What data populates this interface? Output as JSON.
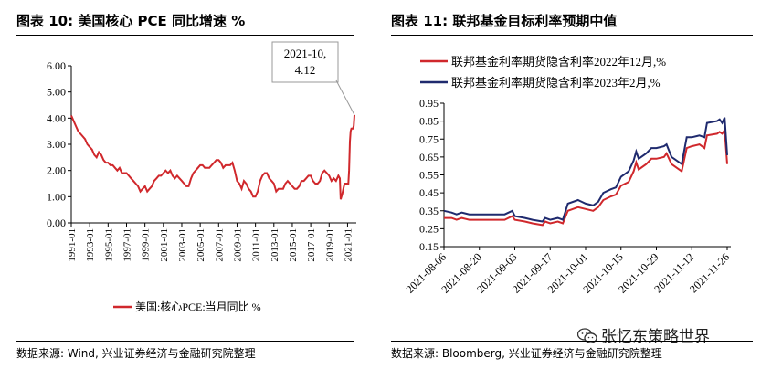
{
  "left_panel": {
    "title": "图表 10:  美国核心 PCE 同比增速 %",
    "source": "数据来源:  Wind, 兴业证券经济与金融研究院整理"
  },
  "right_panel": {
    "title": "图表 11:  联邦基金目标利率预期中值",
    "source": "数据来源:  Bloomberg, 兴业证券经济与金融研究院整理"
  },
  "watermark": {
    "text": "张忆东策略世界",
    "icon": "wechat-icon"
  },
  "chart_data": [
    {
      "type": "line",
      "title": "",
      "xlabel": "",
      "ylabel": "",
      "ylim": [
        0,
        6
      ],
      "y_ticks": [
        "0.00",
        "1.00",
        "2.00",
        "3.00",
        "4.00",
        "5.00",
        "6.00"
      ],
      "x_ticks": [
        "1991-01",
        "1993-01",
        "1995-01",
        "1997-01",
        "1999-01",
        "2001-01",
        "2003-01",
        "2005-01",
        "2007-01",
        "2009-01",
        "2011-01",
        "2013-01",
        "2015-01",
        "2017-01",
        "2019-01",
        "2021-01"
      ],
      "x_range": [
        "1991-01",
        "2021-10"
      ],
      "grid": false,
      "legend_position": "bottom",
      "annotation": {
        "lines": [
          "2021-10,",
          "4.12"
        ],
        "x": "2021-10",
        "y": 4.12
      },
      "series": [
        {
          "name": "美国:核心PCE:当月同比 %",
          "color": "#d0282c",
          "points": [
            [
              "1991-01",
              4.1
            ],
            [
              "1991-04",
              3.9
            ],
            [
              "1991-07",
              3.7
            ],
            [
              "1991-10",
              3.5
            ],
            [
              "1992-01",
              3.4
            ],
            [
              "1992-04",
              3.3
            ],
            [
              "1992-07",
              3.2
            ],
            [
              "1992-10",
              3.0
            ],
            [
              "1993-01",
              2.9
            ],
            [
              "1993-04",
              2.8
            ],
            [
              "1993-07",
              2.6
            ],
            [
              "1993-10",
              2.5
            ],
            [
              "1994-01",
              2.7
            ],
            [
              "1994-04",
              2.6
            ],
            [
              "1994-07",
              2.4
            ],
            [
              "1994-10",
              2.3
            ],
            [
              "1995-01",
              2.3
            ],
            [
              "1995-04",
              2.2
            ],
            [
              "1995-07",
              2.2
            ],
            [
              "1995-10",
              2.1
            ],
            [
              "1996-01",
              2.0
            ],
            [
              "1996-04",
              2.1
            ],
            [
              "1996-07",
              1.9
            ],
            [
              "1996-10",
              1.9
            ],
            [
              "1997-01",
              1.9
            ],
            [
              "1997-04",
              1.8
            ],
            [
              "1997-07",
              1.7
            ],
            [
              "1997-10",
              1.6
            ],
            [
              "1998-01",
              1.5
            ],
            [
              "1998-04",
              1.4
            ],
            [
              "1998-07",
              1.2
            ],
            [
              "1998-10",
              1.3
            ],
            [
              "1999-01",
              1.4
            ],
            [
              "1999-04",
              1.2
            ],
            [
              "1999-07",
              1.3
            ],
            [
              "1999-10",
              1.4
            ],
            [
              "2000-01",
              1.6
            ],
            [
              "2000-04",
              1.7
            ],
            [
              "2000-07",
              1.8
            ],
            [
              "2000-10",
              1.8
            ],
            [
              "2001-01",
              1.9
            ],
            [
              "2001-04",
              2.0
            ],
            [
              "2001-07",
              1.9
            ],
            [
              "2001-10",
              2.0
            ],
            [
              "2002-01",
              1.8
            ],
            [
              "2002-04",
              1.7
            ],
            [
              "2002-07",
              1.8
            ],
            [
              "2002-10",
              1.7
            ],
            [
              "2003-01",
              1.6
            ],
            [
              "2003-04",
              1.5
            ],
            [
              "2003-07",
              1.4
            ],
            [
              "2003-10",
              1.4
            ],
            [
              "2004-01",
              1.7
            ],
            [
              "2004-04",
              1.9
            ],
            [
              "2004-07",
              2.0
            ],
            [
              "2004-10",
              2.1
            ],
            [
              "2005-01",
              2.2
            ],
            [
              "2005-04",
              2.2
            ],
            [
              "2005-07",
              2.1
            ],
            [
              "2005-10",
              2.1
            ],
            [
              "2006-01",
              2.1
            ],
            [
              "2006-04",
              2.2
            ],
            [
              "2006-07",
              2.3
            ],
            [
              "2006-10",
              2.4
            ],
            [
              "2007-01",
              2.4
            ],
            [
              "2007-04",
              2.3
            ],
            [
              "2007-07",
              2.1
            ],
            [
              "2007-10",
              2.2
            ],
            [
              "2008-01",
              2.2
            ],
            [
              "2008-04",
              2.2
            ],
            [
              "2008-07",
              2.3
            ],
            [
              "2008-10",
              2.0
            ],
            [
              "2009-01",
              1.6
            ],
            [
              "2009-04",
              1.5
            ],
            [
              "2009-07",
              1.3
            ],
            [
              "2009-10",
              1.6
            ],
            [
              "2010-01",
              1.5
            ],
            [
              "2010-04",
              1.3
            ],
            [
              "2010-07",
              1.2
            ],
            [
              "2010-10",
              1.0
            ],
            [
              "2011-01",
              1.0
            ],
            [
              "2011-04",
              1.2
            ],
            [
              "2011-07",
              1.6
            ],
            [
              "2011-10",
              1.8
            ],
            [
              "2012-01",
              1.9
            ],
            [
              "2012-04",
              1.9
            ],
            [
              "2012-07",
              1.7
            ],
            [
              "2012-10",
              1.6
            ],
            [
              "2013-01",
              1.5
            ],
            [
              "2013-04",
              1.2
            ],
            [
              "2013-07",
              1.3
            ],
            [
              "2013-10",
              1.3
            ],
            [
              "2014-01",
              1.3
            ],
            [
              "2014-04",
              1.5
            ],
            [
              "2014-07",
              1.6
            ],
            [
              "2014-10",
              1.5
            ],
            [
              "2015-01",
              1.4
            ],
            [
              "2015-04",
              1.3
            ],
            [
              "2015-07",
              1.3
            ],
            [
              "2015-10",
              1.4
            ],
            [
              "2016-01",
              1.6
            ],
            [
              "2016-04",
              1.6
            ],
            [
              "2016-07",
              1.7
            ],
            [
              "2016-10",
              1.8
            ],
            [
              "2017-01",
              1.8
            ],
            [
              "2017-04",
              1.6
            ],
            [
              "2017-07",
              1.5
            ],
            [
              "2017-10",
              1.5
            ],
            [
              "2018-01",
              1.6
            ],
            [
              "2018-04",
              1.9
            ],
            [
              "2018-07",
              2.0
            ],
            [
              "2018-10",
              1.9
            ],
            [
              "2019-01",
              1.8
            ],
            [
              "2019-04",
              1.6
            ],
            [
              "2019-07",
              1.7
            ],
            [
              "2019-10",
              1.6
            ],
            [
              "2020-01",
              1.8
            ],
            [
              "2020-03",
              1.7
            ],
            [
              "2020-04",
              0.9
            ],
            [
              "2020-06",
              1.1
            ],
            [
              "2020-09",
              1.5
            ],
            [
              "2020-12",
              1.5
            ],
            [
              "2021-02",
              1.5
            ],
            [
              "2021-03",
              2.0
            ],
            [
              "2021-04",
              3.1
            ],
            [
              "2021-05",
              3.5
            ],
            [
              "2021-06",
              3.6
            ],
            [
              "2021-07",
              3.6
            ],
            [
              "2021-08",
              3.6
            ],
            [
              "2021-09",
              3.7
            ],
            [
              "2021-10",
              4.12
            ]
          ]
        }
      ]
    },
    {
      "type": "line",
      "title": "",
      "xlabel": "",
      "ylabel": "",
      "ylim": [
        0.15,
        0.95
      ],
      "y_ticks": [
        "0.15",
        "0.25",
        "0.35",
        "0.45",
        "0.55",
        "0.65",
        "0.75",
        "0.85",
        "0.95"
      ],
      "x_ticks": [
        "2021-08-06",
        "2021-08-20",
        "2021-09-03",
        "2021-09-17",
        "2021-10-01",
        "2021-10-15",
        "2021-10-29",
        "2021-11-12",
        "2021-11-26"
      ],
      "x_range": [
        "2021-08-06",
        "2021-11-26"
      ],
      "grid": false,
      "legend_position": "top-left",
      "series": [
        {
          "name": "联邦基金利率期货隐含利率2022年12月,%",
          "color": "#d0282c",
          "points": [
            [
              "2021-08-06",
              0.31
            ],
            [
              "2021-08-09",
              0.31
            ],
            [
              "2021-08-11",
              0.3
            ],
            [
              "2021-08-13",
              0.31
            ],
            [
              "2021-08-16",
              0.3
            ],
            [
              "2021-08-20",
              0.3
            ],
            [
              "2021-08-25",
              0.3
            ],
            [
              "2021-08-30",
              0.3
            ],
            [
              "2021-09-02",
              0.32
            ],
            [
              "2021-09-03",
              0.3
            ],
            [
              "2021-09-07",
              0.29
            ],
            [
              "2021-09-10",
              0.28
            ],
            [
              "2021-09-14",
              0.27
            ],
            [
              "2021-09-15",
              0.29
            ],
            [
              "2021-09-17",
              0.28
            ],
            [
              "2021-09-20",
              0.29
            ],
            [
              "2021-09-22",
              0.28
            ],
            [
              "2021-09-24",
              0.35
            ],
            [
              "2021-09-28",
              0.37
            ],
            [
              "2021-10-01",
              0.36
            ],
            [
              "2021-10-04",
              0.35
            ],
            [
              "2021-10-06",
              0.37
            ],
            [
              "2021-10-08",
              0.41
            ],
            [
              "2021-10-11",
              0.43
            ],
            [
              "2021-10-13",
              0.44
            ],
            [
              "2021-10-15",
              0.49
            ],
            [
              "2021-10-18",
              0.51
            ],
            [
              "2021-10-20",
              0.57
            ],
            [
              "2021-10-21",
              0.62
            ],
            [
              "2021-10-22",
              0.58
            ],
            [
              "2021-10-25",
              0.61
            ],
            [
              "2021-10-27",
              0.64
            ],
            [
              "2021-10-29",
              0.64
            ],
            [
              "2021-11-01",
              0.65
            ],
            [
              "2021-11-02",
              0.67
            ],
            [
              "2021-11-04",
              0.61
            ],
            [
              "2021-11-05",
              0.6
            ],
            [
              "2021-11-08",
              0.57
            ],
            [
              "2021-11-10",
              0.7
            ],
            [
              "2021-11-12",
              0.71
            ],
            [
              "2021-11-15",
              0.72
            ],
            [
              "2021-11-17",
              0.7
            ],
            [
              "2021-11-18",
              0.77
            ],
            [
              "2021-11-22",
              0.78
            ],
            [
              "2021-11-23",
              0.79
            ],
            [
              "2021-11-24",
              0.78
            ],
            [
              "2021-11-25",
              0.8
            ],
            [
              "2021-11-26",
              0.61
            ]
          ]
        },
        {
          "name": "联邦基金利率期货隐含利率2023年2月,%",
          "color": "#1f2a6e",
          "points": [
            [
              "2021-08-06",
              0.35
            ],
            [
              "2021-08-09",
              0.34
            ],
            [
              "2021-08-11",
              0.33
            ],
            [
              "2021-08-13",
              0.34
            ],
            [
              "2021-08-16",
              0.33
            ],
            [
              "2021-08-20",
              0.33
            ],
            [
              "2021-08-25",
              0.33
            ],
            [
              "2021-08-30",
              0.33
            ],
            [
              "2021-09-02",
              0.35
            ],
            [
              "2021-09-03",
              0.32
            ],
            [
              "2021-09-07",
              0.31
            ],
            [
              "2021-09-10",
              0.3
            ],
            [
              "2021-09-14",
              0.29
            ],
            [
              "2021-09-15",
              0.31
            ],
            [
              "2021-09-17",
              0.3
            ],
            [
              "2021-09-20",
              0.31
            ],
            [
              "2021-09-22",
              0.3
            ],
            [
              "2021-09-24",
              0.39
            ],
            [
              "2021-09-28",
              0.41
            ],
            [
              "2021-10-01",
              0.39
            ],
            [
              "2021-10-04",
              0.38
            ],
            [
              "2021-10-06",
              0.4
            ],
            [
              "2021-10-08",
              0.45
            ],
            [
              "2021-10-11",
              0.47
            ],
            [
              "2021-10-13",
              0.48
            ],
            [
              "2021-10-15",
              0.54
            ],
            [
              "2021-10-18",
              0.57
            ],
            [
              "2021-10-20",
              0.63
            ],
            [
              "2021-10-21",
              0.68
            ],
            [
              "2021-10-22",
              0.64
            ],
            [
              "2021-10-25",
              0.67
            ],
            [
              "2021-10-27",
              0.7
            ],
            [
              "2021-10-29",
              0.7
            ],
            [
              "2021-11-01",
              0.71
            ],
            [
              "2021-11-02",
              0.72
            ],
            [
              "2021-11-04",
              0.65
            ],
            [
              "2021-11-05",
              0.64
            ],
            [
              "2021-11-08",
              0.61
            ],
            [
              "2021-11-10",
              0.76
            ],
            [
              "2021-11-12",
              0.76
            ],
            [
              "2021-11-15",
              0.77
            ],
            [
              "2021-11-17",
              0.76
            ],
            [
              "2021-11-18",
              0.84
            ],
            [
              "2021-11-22",
              0.85
            ],
            [
              "2021-11-23",
              0.86
            ],
            [
              "2021-11-24",
              0.84
            ],
            [
              "2021-11-25",
              0.87
            ],
            [
              "2021-11-26",
              0.66
            ]
          ]
        }
      ]
    }
  ]
}
